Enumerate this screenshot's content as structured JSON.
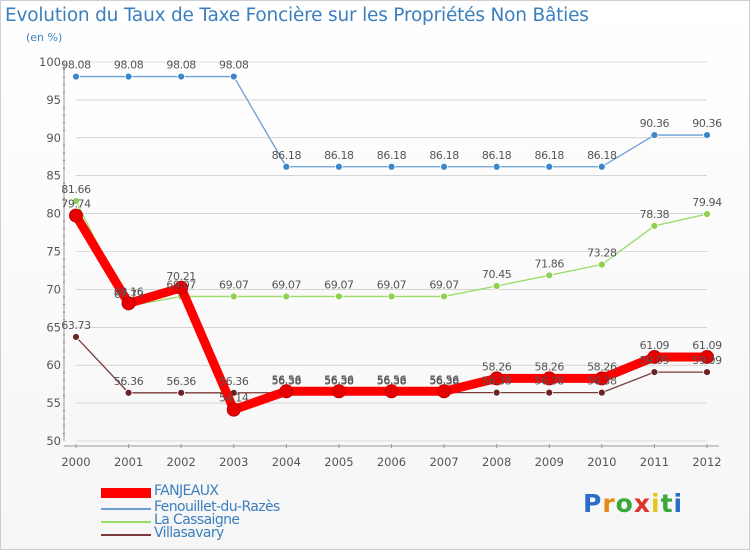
{
  "title": "Evolution du Taux de Taxe Foncière sur les Propriétés Non Bâties",
  "unit_label": "(en %)",
  "brand": [
    "P",
    "r",
    "o",
    "x",
    "i",
    "t",
    "i"
  ],
  "brand_colors": [
    "#2c6cc7",
    "#e38a1a",
    "#3aa83a",
    "#e0332d",
    "#e8c31d",
    "#3aa83a",
    "#2c6cc7"
  ],
  "chart_data": {
    "type": "line",
    "x": [
      "2000",
      "2001",
      "2002",
      "2003",
      "2004",
      "2005",
      "2006",
      "2007",
      "2008",
      "2009",
      "2010",
      "2011",
      "2012"
    ],
    "ylim": [
      50,
      100
    ],
    "yticks": [
      50,
      55,
      60,
      65,
      70,
      75,
      80,
      85,
      90,
      95,
      100
    ],
    "ytick_labels": [
      "50",
      "55",
      "60",
      "65",
      "70",
      "75",
      "80",
      "85",
      "90",
      "95",
      "100"
    ],
    "grid": "horizontal",
    "series": [
      {
        "name": "FANJEAUX",
        "color": "#ff0000",
        "marker": "#e60000",
        "values": [
          79.74,
          68.16,
          70.21,
          54.14,
          56.56,
          56.56,
          56.56,
          56.56,
          58.26,
          58.26,
          58.26,
          61.09,
          61.09
        ],
        "labels": [
          "79.74",
          "68.16",
          "70.21",
          "54.14",
          "56.56",
          "56.56",
          "56.56",
          "56.56",
          "58.26",
          "58.26",
          "58.26",
          "61.09",
          "61.09"
        ]
      },
      {
        "name": "Fenouillet-du-Razès",
        "color": "#6a9fd4",
        "marker": "#3a87c9",
        "values": [
          98.08,
          98.08,
          98.08,
          98.08,
          86.18,
          86.18,
          86.18,
          86.18,
          86.18,
          86.18,
          86.18,
          90.36,
          90.36
        ],
        "labels": [
          "98.08",
          "98.08",
          "98.08",
          "98.08",
          "86.18",
          "86.18",
          "86.18",
          "86.18",
          "86.18",
          "86.18",
          "86.18",
          "90.36",
          "90.36"
        ]
      },
      {
        "name": "La Cassaigne",
        "color": "#99dd66",
        "marker": "#8ed04f",
        "values": [
          81.66,
          67.79,
          69.07,
          69.07,
          69.07,
          69.07,
          69.07,
          69.07,
          70.45,
          71.86,
          73.28,
          78.38,
          79.94
        ],
        "labels": [
          "81.66",
          "67.79",
          "69.07",
          "69.07",
          "69.07",
          "69.07",
          "69.07",
          "69.07",
          "70.45",
          "71.86",
          "73.28",
          "78.38",
          "79.94"
        ]
      },
      {
        "name": "Villasavary",
        "color": "#7a3a3a",
        "marker": "#6b2424",
        "values": [
          63.73,
          56.36,
          56.36,
          56.36,
          56.38,
          56.38,
          56.38,
          56.38,
          56.38,
          56.38,
          56.38,
          59.09,
          59.09
        ],
        "labels": [
          "63.73",
          "56.36",
          "56.36",
          "56.36",
          "56.38",
          "56.38",
          "56.38",
          "56.38",
          "56.38",
          "56.38",
          "56.38",
          "59.09",
          "59.09"
        ]
      }
    ]
  }
}
